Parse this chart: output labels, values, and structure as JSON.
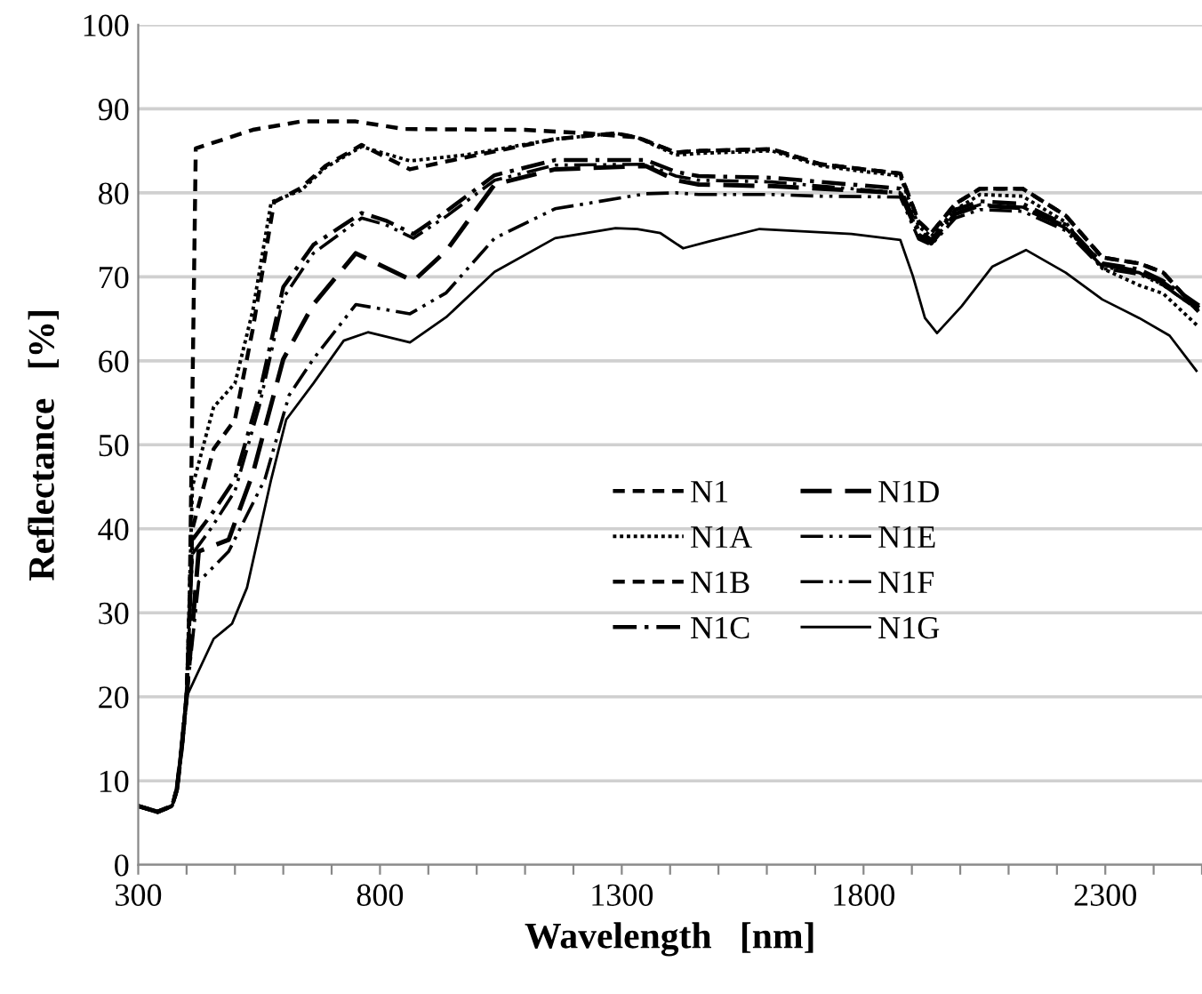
{
  "chart_data": {
    "type": "line",
    "xlabel": "Wavelength   [nm]",
    "ylabel": "Reflectance   [%]",
    "xlim": [
      300,
      2500
    ],
    "ylim": [
      0,
      100
    ],
    "xticks": [
      300,
      {
        "value": 400,
        "label": null
      },
      {
        "value": 500,
        "label": null
      },
      {
        "value": 600,
        "label": null
      },
      {
        "value": 700,
        "label": null
      },
      800,
      {
        "value": 900,
        "label": null
      },
      {
        "value": 1000,
        "label": null
      },
      {
        "value": 1100,
        "label": null
      },
      {
        "value": 1200,
        "label": null
      },
      1300,
      {
        "value": 1400,
        "label": null
      },
      {
        "value": 1500,
        "label": null
      },
      {
        "value": 1600,
        "label": null
      },
      {
        "value": 1700,
        "label": null
      },
      1800,
      {
        "value": 1900,
        "label": null
      },
      {
        "value": 2000,
        "label": null
      },
      {
        "value": 2100,
        "label": null
      },
      {
        "value": 2200,
        "label": null
      },
      2300,
      {
        "value": 2400,
        "label": null
      },
      {
        "value": 2500,
        "label": null
      }
    ],
    "yticks": [
      0,
      10,
      20,
      30,
      40,
      50,
      60,
      70,
      80,
      90,
      100
    ],
    "grid": "y",
    "legend": "center",
    "marker": "none",
    "series": [
      {
        "name": "N1",
        "color": "#000000",
        "line_style": "dashed",
        "x": [
          300,
          340,
          370,
          380,
          390,
          400,
          406,
          419,
          537,
          637,
          750,
          850,
          1100,
          1225,
          1332,
          1412,
          1459,
          1610,
          1712,
          1876,
          1914,
          1940,
          1990,
          2041,
          2129,
          2218,
          2294,
          2370,
          2420,
          2494
        ],
        "values": [
          7,
          6.3,
          7,
          9,
          14,
          20,
          30,
          85.3,
          87.5,
          88.5,
          88.5,
          87.6,
          87.5,
          87.1,
          86.6,
          84.8,
          85,
          85.2,
          83.4,
          82.3,
          76.6,
          75.2,
          78.7,
          80.5,
          80.5,
          77.3,
          72.3,
          71.6,
          70.5,
          65.8
        ]
      },
      {
        "name": "N1A",
        "color": "#000000",
        "line_style": "dotted",
        "x": [
          300,
          340,
          370,
          380,
          390,
          400,
          412,
          456,
          500,
          537,
          575,
          637,
          687,
          762,
          862,
          975,
          1162,
          1287,
          1332,
          1412,
          1459,
          1610,
          1712,
          1876,
          1914,
          1940,
          1990,
          2041,
          2129,
          2218,
          2294,
          2370,
          2420,
          2494
        ],
        "values": [
          7,
          6.3,
          7,
          9,
          14,
          20,
          45,
          54.5,
          57.3,
          66,
          78.9,
          80.3,
          83,
          85.5,
          83.8,
          84.5,
          86.4,
          87.1,
          86.6,
          84.5,
          84.7,
          85,
          83.2,
          82,
          76,
          74.8,
          78,
          79.8,
          79.6,
          76.5,
          71,
          69,
          68,
          64
        ]
      },
      {
        "name": "N1B",
        "color": "#000000",
        "line_style": "dashed",
        "x": [
          300,
          340,
          370,
          380,
          390,
          400,
          412,
          456,
          500,
          537,
          581,
          637,
          687,
          762,
          862,
          975,
          1162,
          1287,
          1332,
          1412,
          1459,
          1610,
          1712,
          1876,
          1914,
          1940,
          1990,
          2041,
          2129,
          2218,
          2294,
          2370,
          2420,
          2494
        ],
        "values": [
          7,
          6.3,
          7,
          9,
          14,
          20,
          40,
          49.5,
          53,
          63.8,
          78.9,
          80.6,
          83.2,
          85.7,
          82.8,
          84.2,
          86.4,
          87.1,
          86.6,
          84.8,
          85,
          85.2,
          83.4,
          82.3,
          76.6,
          75.2,
          78.7,
          80.5,
          80.5,
          77.3,
          72.3,
          71.6,
          70.5,
          65.8
        ]
      },
      {
        "name": "N1C",
        "color": "#000000",
        "line_style": "dashdot",
        "x": [
          300,
          340,
          370,
          380,
          390,
          400,
          412,
          450,
          500,
          550,
          600,
          662,
          762,
          812,
          869,
          937,
          1037,
          1162,
          1350,
          1412,
          1459,
          1610,
          1712,
          1876,
          1914,
          1940,
          1990,
          2041,
          2129,
          2218,
          2294,
          2370,
          2420,
          2494
        ],
        "values": [
          7,
          6.3,
          7,
          9,
          14,
          20,
          38.7,
          41.6,
          45.9,
          55.9,
          68.8,
          73.8,
          77.6,
          76.7,
          75.1,
          77.8,
          82.1,
          83.9,
          83.9,
          82.5,
          82,
          81.8,
          81.3,
          80.5,
          75.5,
          74.4,
          78,
          79,
          78.7,
          76.2,
          71.6,
          70.9,
          69.5,
          66.6
        ]
      },
      {
        "name": "N1D",
        "color": "#000000",
        "line_style": "longdash",
        "x": [
          300,
          340,
          370,
          380,
          390,
          400,
          425,
          487,
          537,
          600,
          662,
          750,
          869,
          937,
          1037,
          1162,
          1350,
          1412,
          1459,
          1610,
          1712,
          1876,
          1914,
          1940,
          1990,
          2041,
          2129,
          2218,
          2294,
          2370,
          2420,
          2494
        ],
        "values": [
          7,
          6.3,
          7,
          9,
          14,
          20,
          37.3,
          38.7,
          46.6,
          60.2,
          66.7,
          72.8,
          69.5,
          73.1,
          81,
          82.8,
          83.2,
          81.5,
          81,
          80.8,
          80.5,
          80,
          75,
          74,
          77.5,
          78.5,
          78.2,
          76,
          71.5,
          70.6,
          69.3,
          66.3
        ]
      },
      {
        "name": "N1E",
        "color": "#000000",
        "line_style": "dashdotdot",
        "x": [
          300,
          340,
          370,
          380,
          390,
          400,
          425,
          487,
          562,
          612,
          662,
          750,
          862,
          937,
          1037,
          1162,
          1350,
          1412,
          1459,
          1610,
          1712,
          1876,
          1914,
          1940,
          1990,
          2041,
          2129,
          2218,
          2294,
          2370,
          2420,
          2494
        ],
        "values": [
          7,
          6.3,
          7,
          9,
          14,
          20,
          33.7,
          37.3,
          45.9,
          55.9,
          60.2,
          66.7,
          65.6,
          68.1,
          74.6,
          78.1,
          79.9,
          80,
          79.8,
          79.8,
          79.6,
          79.5,
          74.5,
          73.8,
          77,
          78,
          77.8,
          75.5,
          71,
          70.3,
          69,
          66
        ]
      },
      {
        "name": "N1F",
        "color": "#000000",
        "line_style": "dashdotdot",
        "x": [
          300,
          340,
          370,
          380,
          390,
          400,
          412,
          450,
          500,
          550,
          600,
          662,
          762,
          812,
          869,
          937,
          1037,
          1162,
          1350,
          1412,
          1459,
          1610,
          1712,
          1876,
          1914,
          1940,
          1990,
          2041,
          2129,
          2218,
          2294,
          2370,
          2420,
          2494
        ],
        "values": [
          7,
          6.3,
          7,
          9,
          14,
          20,
          37,
          40,
          44.5,
          54.5,
          67.5,
          72.8,
          77,
          76.2,
          74.6,
          77.2,
          81.5,
          83.3,
          83.4,
          82,
          81.5,
          81.3,
          80.8,
          80,
          75,
          74,
          77.6,
          78.6,
          78.3,
          75.8,
          71.2,
          70.5,
          69,
          66
        ]
      },
      {
        "name": "N1G",
        "color": "#000000",
        "line_style": "solid",
        "x": [
          300,
          340,
          370,
          380,
          390,
          400,
          412,
          456,
          494,
          525,
          575,
          606,
          662,
          725,
          775,
          862,
          937,
          1037,
          1162,
          1287,
          1332,
          1380,
          1427,
          1480,
          1585,
          1775,
          1876,
          1902,
          1927,
          1952,
          2003,
          2066,
          2136,
          2218,
          2294,
          2370,
          2433,
          2490
        ],
        "values": [
          7,
          6.3,
          7,
          9,
          14,
          20,
          21.5,
          26.9,
          28.7,
          33,
          45.9,
          53,
          57.3,
          62.4,
          63.4,
          62.2,
          65.2,
          70.6,
          74.6,
          75.8,
          75.7,
          75.2,
          73.4,
          74.2,
          75.7,
          75.1,
          74.4,
          70.1,
          65.1,
          63.3,
          66.5,
          71.2,
          73.2,
          70.5,
          67.3,
          65.1,
          63,
          58.7
        ]
      }
    ]
  }
}
